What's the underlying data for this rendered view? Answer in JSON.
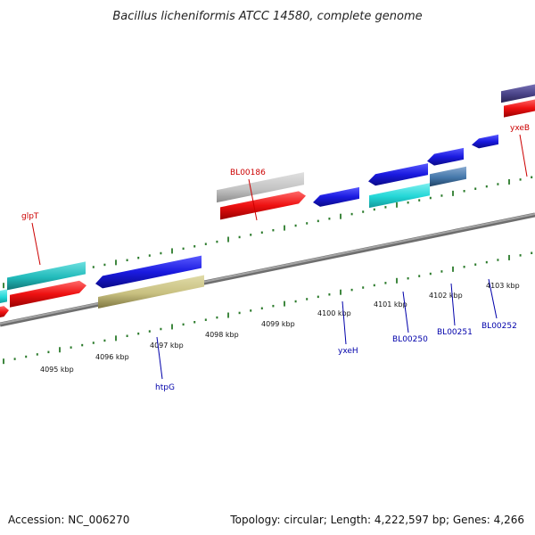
{
  "title": "Bacillus licheniformis ATCC 14580, complete genome",
  "footer": {
    "accession": "Accession: NC_006270",
    "summary": "Topology: circular; Length: 4,222,597 bp; Genes: 4,266"
  },
  "colors": {
    "backbone": "#8a8a8a",
    "tick": "#2a7a2a",
    "forward_label": "#cc0000",
    "reverse_label": "#0000aa",
    "blue_gene": "#1a1ae0",
    "red_feature": "#ee1111",
    "cyan_gene": "#22dddd",
    "gray_gene": "#c4c4c4",
    "khaki_gene": "#c8c080",
    "purple_gene": "#4a4488",
    "steel_gene": "#4477aa"
  },
  "scale": {
    "labels": [
      "4095 kbp",
      "4096 kbp",
      "4097 kbp",
      "4098 kbp",
      "4099 kbp",
      "4100 kbp",
      "4101 kbp",
      "4102 kbp",
      "4103 kbp"
    ]
  },
  "genes": [
    {
      "name": "glpT",
      "strand": "forward"
    },
    {
      "name": "BL00186",
      "strand": "forward"
    },
    {
      "name": "yxeB",
      "strand": "forward"
    },
    {
      "name": "htpG",
      "strand": "reverse"
    },
    {
      "name": "yxeH",
      "strand": "reverse"
    },
    {
      "name": "BL00250",
      "strand": "reverse"
    },
    {
      "name": "BL00251",
      "strand": "reverse"
    },
    {
      "name": "BL00252",
      "strand": "reverse"
    }
  ]
}
